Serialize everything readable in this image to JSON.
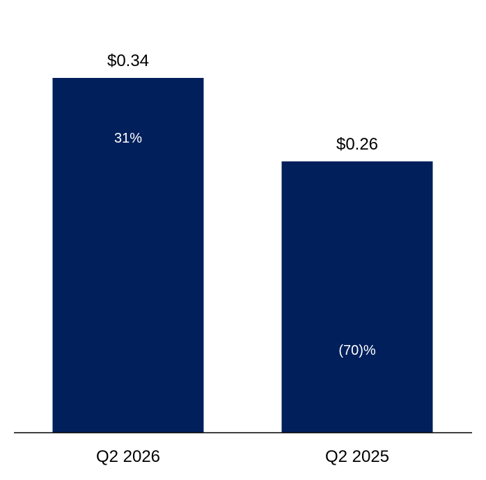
{
  "chart_data": {
    "type": "bar",
    "title": "",
    "xlabel": "",
    "ylabel": "",
    "categories": [
      "Q2 2026",
      "Q2 2025"
    ],
    "values": [
      0.34,
      0.26
    ],
    "value_labels": [
      "$0.34",
      "$0.26"
    ],
    "change_labels": [
      "31%",
      "(70)%"
    ],
    "ylim": [
      0,
      0.34
    ],
    "grid": false,
    "legend": "none",
    "bar_color": "#001f5b",
    "axis_color": "#000000"
  }
}
